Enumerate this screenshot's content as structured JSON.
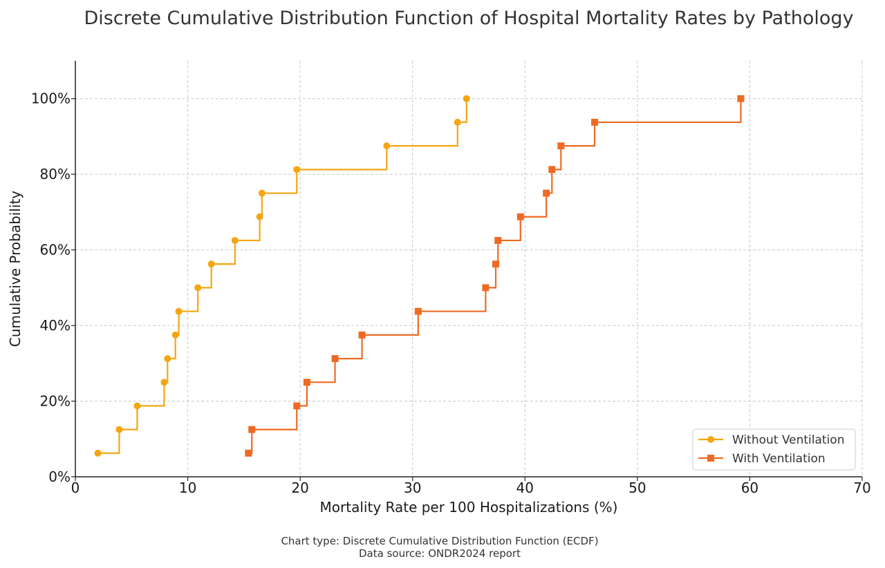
{
  "chart_data": {
    "type": "line",
    "subtype": "step-ecdf",
    "title": "Discrete Cumulative Distribution Function of Hospital Mortality Rates by Pathology",
    "xlabel": "Mortality Rate per 100 Hospitalizations (%)",
    "ylabel": "Cumulative Probability",
    "xlim": [
      0,
      70
    ],
    "ylim": [
      0,
      1.1
    ],
    "xticks": [
      0,
      10,
      20,
      30,
      40,
      50,
      60,
      70
    ],
    "xtick_labels": [
      "0",
      "10",
      "20",
      "30",
      "40",
      "50",
      "60",
      "70"
    ],
    "yticks": [
      0,
      0.2,
      0.4,
      0.6,
      0.8,
      1.0
    ],
    "ytick_labels": [
      "0%",
      "20%",
      "40%",
      "60%",
      "80%",
      "100%"
    ],
    "grid": true,
    "legend_position": "bottom-right",
    "series": [
      {
        "name": "Without Ventilation",
        "color": "#f5a511",
        "marker": "circle",
        "x": [
          2.0,
          3.9,
          5.5,
          7.9,
          8.2,
          8.9,
          9.2,
          10.9,
          12.1,
          14.2,
          16.4,
          16.6,
          19.7,
          27.7,
          34.0,
          34.8
        ],
        "y": [
          0.0625,
          0.125,
          0.1875,
          0.25,
          0.3125,
          0.375,
          0.4375,
          0.5,
          0.5625,
          0.625,
          0.6875,
          0.75,
          0.8125,
          0.875,
          0.9375,
          1.0
        ]
      },
      {
        "name": "With Ventilation",
        "color": "#ee6a23",
        "marker": "square",
        "x": [
          15.4,
          15.7,
          19.7,
          20.6,
          23.1,
          25.5,
          30.5,
          36.5,
          37.4,
          37.6,
          39.6,
          41.9,
          42.4,
          43.2,
          46.2,
          59.2
        ],
        "y": [
          0.0625,
          0.125,
          0.1875,
          0.25,
          0.3125,
          0.375,
          0.4375,
          0.5,
          0.5625,
          0.625,
          0.6875,
          0.75,
          0.8125,
          0.875,
          0.9375,
          1.0
        ]
      }
    ]
  },
  "footer": {
    "chart_type_line": "Chart type: Discrete Cumulative Distribution Function (ECDF)",
    "source_line": "Data source: ONDR2024 report"
  }
}
